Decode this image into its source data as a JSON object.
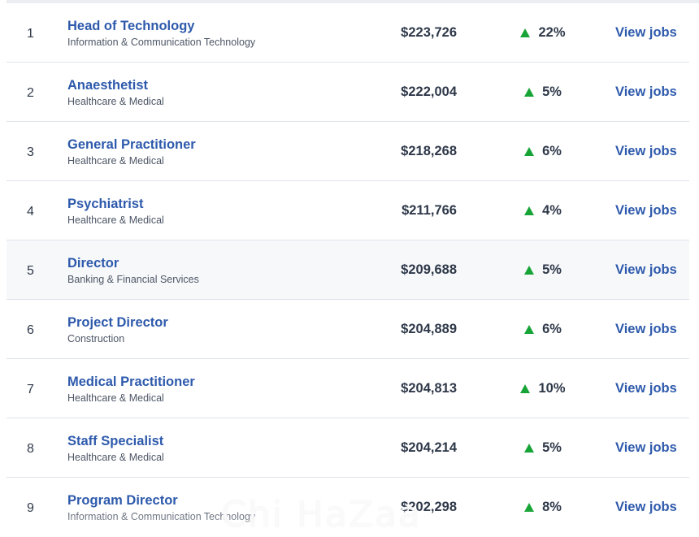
{
  "view_label": "View jobs",
  "rows": [
    {
      "rank": "1",
      "title": "Head of Technology",
      "category": "Information & Communication Technology",
      "salary": "$223,726",
      "growth": "22%"
    },
    {
      "rank": "2",
      "title": "Anaesthetist",
      "category": "Healthcare & Medical",
      "salary": "$222,004",
      "growth": "5%"
    },
    {
      "rank": "3",
      "title": "General Practitioner",
      "category": "Healthcare & Medical",
      "salary": "$218,268",
      "growth": "6%"
    },
    {
      "rank": "4",
      "title": "Psychiatrist",
      "category": "Healthcare & Medical",
      "salary": "$211,766",
      "growth": "4%"
    },
    {
      "rank": "5",
      "title": "Director",
      "category": "Banking & Financial Services",
      "salary": "$209,688",
      "growth": "5%"
    },
    {
      "rank": "6",
      "title": "Project Director",
      "category": "Construction",
      "salary": "$204,889",
      "growth": "6%"
    },
    {
      "rank": "7",
      "title": "Medical Practitioner",
      "category": "Healthcare & Medical",
      "salary": "$204,813",
      "growth": "10%"
    },
    {
      "rank": "8",
      "title": "Staff Specialist",
      "category": "Healthcare & Medical",
      "salary": "$204,214",
      "growth": "5%"
    },
    {
      "rank": "9",
      "title": "Program Director",
      "category": "Information & Communication Technology",
      "salary": "$202,298",
      "growth": "8%"
    }
  ],
  "colors": {
    "link": "#2e5aac",
    "text": "#2e3849",
    "up_arrow": "#17a437",
    "row_divider": "#dde3ea",
    "highlight_row": "#f7f8fa"
  },
  "icons": {
    "trend": "up-arrow-icon"
  },
  "watermark": "Chi HaZaa"
}
